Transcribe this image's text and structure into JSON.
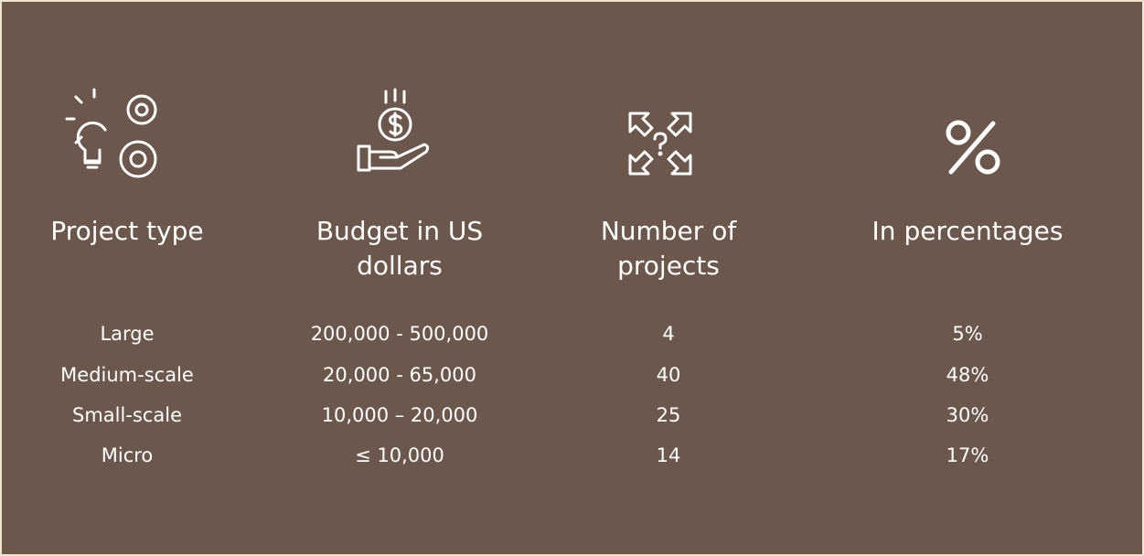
{
  "table": {
    "headers": [
      "Project type",
      "Budget in US dollars",
      "Number of projects",
      "In percentages"
    ],
    "rows": [
      [
        "Large",
        "200,000 - 500,000",
        "4",
        "5%"
      ],
      [
        "Medium-scale",
        "20,000 - 65,000",
        "40",
        "48%"
      ],
      [
        "Small-scale",
        "10,000 – 20,000",
        "25",
        "30%"
      ],
      [
        "Micro",
        "≤ 10,000",
        "14",
        "17%"
      ]
    ]
  }
}
